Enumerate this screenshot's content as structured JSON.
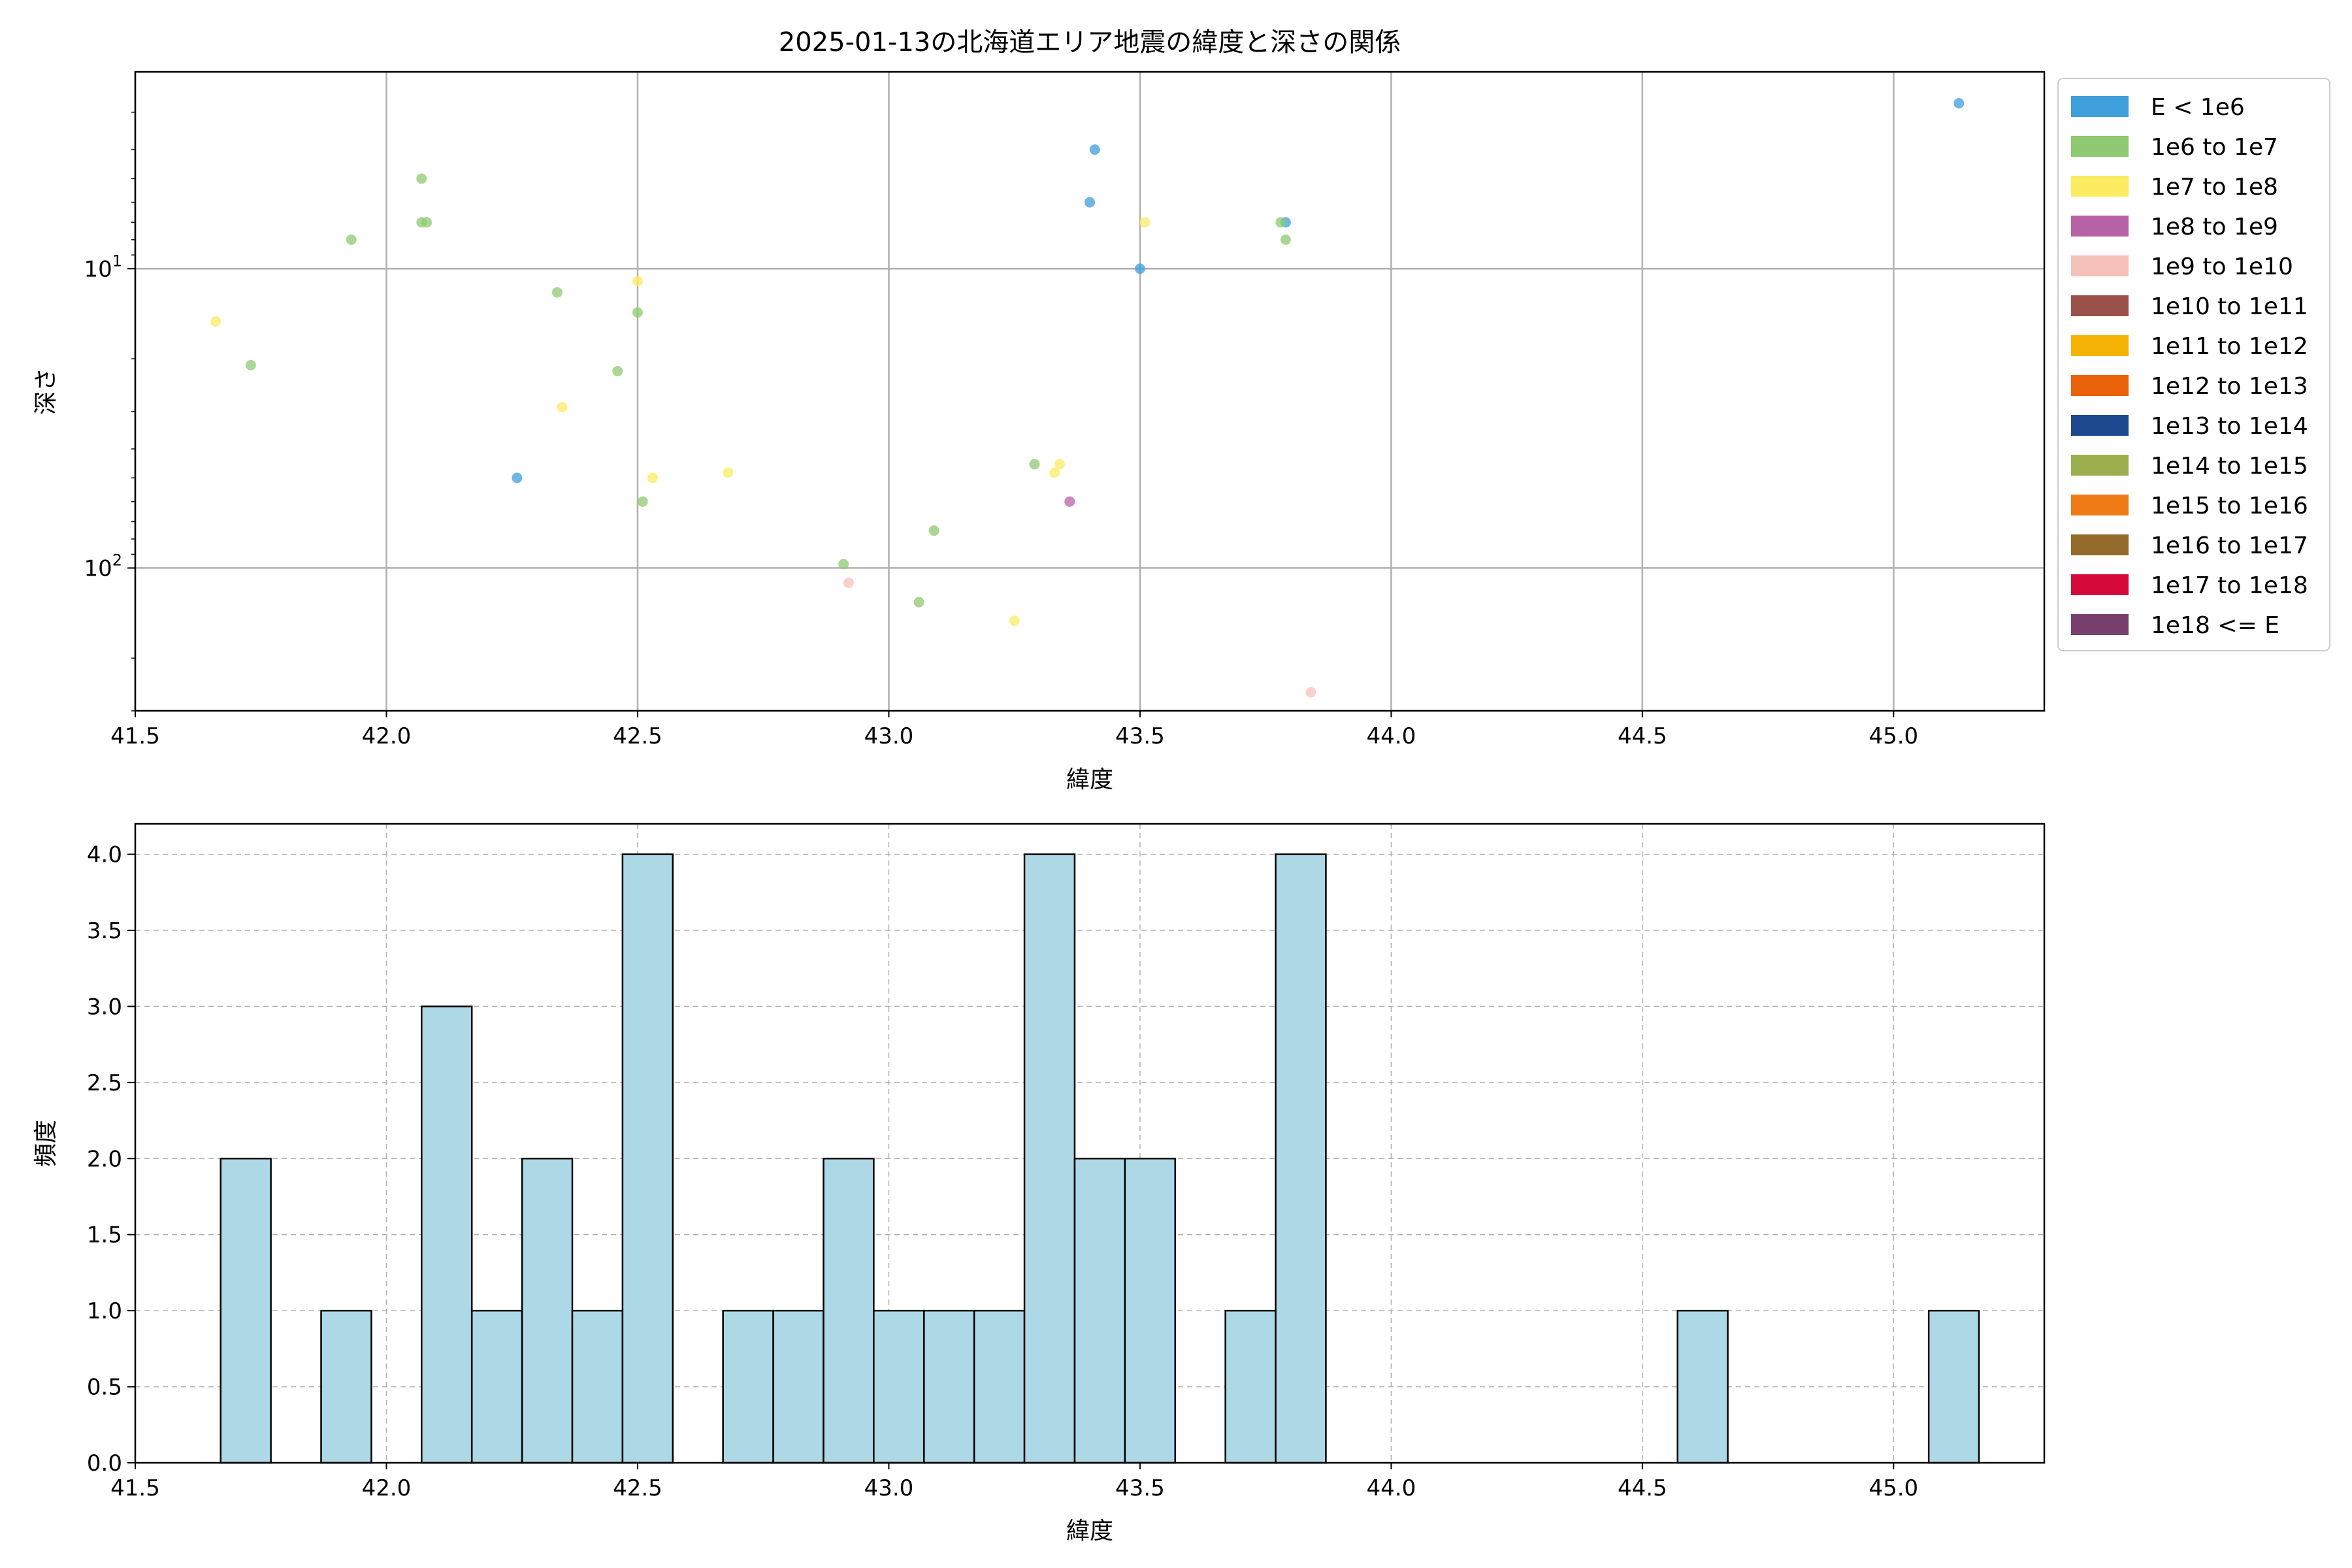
{
  "figure": {
    "title": "2025-01-13の北海道エリア地震の緯度と深さの関係"
  },
  "chart_data": [
    {
      "type": "scatter",
      "title": "2025-01-13の北海道エリア地震の緯度と深さの関係",
      "xlabel": "緯度",
      "ylabel": "深さ",
      "xlim": [
        41.5,
        45.3
      ],
      "ylim": [
        300,
        2.2
      ],
      "y_scale": "log",
      "y_inverted": true,
      "grid": true,
      "legend_position": "outside-right",
      "x_ticks": [
        "41.5",
        "42.0",
        "42.5",
        "43.0",
        "43.5",
        "44.0",
        "44.5",
        "45.0"
      ],
      "y_ticks": [
        {
          "value": 10,
          "base": "10",
          "exp": "1"
        },
        {
          "value": 100,
          "base": "10",
          "exp": "2"
        }
      ],
      "legend": [
        {
          "label": "E < 1e6",
          "color": "#3e9fdb"
        },
        {
          "label": "1e6 to 1e7",
          "color": "#8fc971"
        },
        {
          "label": "1e7 to 1e8",
          "color": "#fbec62"
        },
        {
          "label": "1e8 to 1e9",
          "color": "#b762a5"
        },
        {
          "label": "1e9 to 1e10",
          "color": "#f5c1ba"
        },
        {
          "label": "1e10 to 1e11",
          "color": "#9a5149"
        },
        {
          "label": "1e11 to 1e12",
          "color": "#f5b306"
        },
        {
          "label": "1e12 to 1e13",
          "color": "#ea6209"
        },
        {
          "label": "1e13 to 1e14",
          "color": "#1f498f"
        },
        {
          "label": "1e14 to 1e15",
          "color": "#9caf4e"
        },
        {
          "label": "1e15 to 1e16",
          "color": "#ee7b16"
        },
        {
          "label": "1e16 to 1e17",
          "color": "#946a2b"
        },
        {
          "label": "1e17 to 1e18",
          "color": "#d50a3b"
        },
        {
          "label": "1e18 <= E",
          "color": "#79406e"
        }
      ],
      "series": [
        {
          "name": "E < 1e6",
          "color": "#3e9fdb",
          "points": [
            [
              45.13,
              2.8
            ],
            [
              43.41,
              4.0
            ],
            [
              43.4,
              6.0
            ],
            [
              43.79,
              7.0
            ],
            [
              43.5,
              10.0
            ],
            [
              42.26,
              50.0
            ]
          ]
        },
        {
          "name": "1e6 to 1e7",
          "color": "#8fc971",
          "points": [
            [
              42.07,
              5.0
            ],
            [
              42.07,
              7.0
            ],
            [
              42.08,
              7.0
            ],
            [
              41.93,
              8.0
            ],
            [
              43.78,
              7.0
            ],
            [
              43.79,
              8.0
            ],
            [
              42.34,
              12.0
            ],
            [
              42.5,
              14.0
            ],
            [
              42.46,
              22.0
            ],
            [
              41.73,
              21.0
            ],
            [
              43.29,
              45.0
            ],
            [
              42.51,
              60.0
            ],
            [
              43.09,
              75.0
            ],
            [
              42.91,
              97.0
            ],
            [
              43.06,
              130.0
            ]
          ]
        },
        {
          "name": "1e7 to 1e8",
          "color": "#fbec62",
          "points": [
            [
              43.51,
              7.0
            ],
            [
              42.5,
              11.0
            ],
            [
              41.66,
              15.0
            ],
            [
              42.35,
              29.0
            ],
            [
              43.34,
              45.0
            ],
            [
              43.33,
              48.0
            ],
            [
              42.68,
              48.0
            ],
            [
              42.53,
              50.0
            ],
            [
              43.25,
              150.0
            ]
          ]
        },
        {
          "name": "1e8 to 1e9",
          "color": "#b762a5",
          "points": [
            [
              43.36,
              60.0
            ]
          ]
        },
        {
          "name": "1e9 to 1e10",
          "color": "#f5c1ba",
          "points": [
            [
              42.92,
              112.0
            ],
            [
              43.84,
              260.0
            ]
          ]
        }
      ]
    },
    {
      "type": "bar",
      "subtype": "histogram",
      "xlabel": "緯度",
      "ylabel": "頻度",
      "xlim": [
        41.5,
        45.3
      ],
      "ylim": [
        0,
        4.2
      ],
      "bin_width": 0.1,
      "grid": true,
      "bar_color": "#add8e6",
      "x_ticks": [
        "41.5",
        "42.0",
        "42.5",
        "43.0",
        "43.5",
        "44.0",
        "44.5",
        "45.0"
      ],
      "y_ticks": [
        "0.0",
        "0.5",
        "1.0",
        "1.5",
        "2.0",
        "2.5",
        "3.0",
        "3.5",
        "4.0"
      ],
      "bins": [
        {
          "x0": 41.67,
          "count": 2
        },
        {
          "x0": 41.87,
          "count": 1
        },
        {
          "x0": 42.07,
          "count": 3
        },
        {
          "x0": 42.17,
          "count": 1
        },
        {
          "x0": 42.27,
          "count": 2
        },
        {
          "x0": 42.37,
          "count": 1
        },
        {
          "x0": 42.47,
          "count": 4
        },
        {
          "x0": 42.67,
          "count": 1
        },
        {
          "x0": 42.77,
          "count": 1
        },
        {
          "x0": 42.87,
          "count": 2
        },
        {
          "x0": 42.97,
          "count": 1
        },
        {
          "x0": 43.07,
          "count": 1
        },
        {
          "x0": 43.17,
          "count": 1
        },
        {
          "x0": 43.27,
          "count": 4
        },
        {
          "x0": 43.37,
          "count": 2
        },
        {
          "x0": 43.47,
          "count": 2
        },
        {
          "x0": 43.67,
          "count": 1
        },
        {
          "x0": 43.77,
          "count": 4
        },
        {
          "x0": 44.57,
          "count": 1
        },
        {
          "x0": 45.07,
          "count": 1
        }
      ]
    }
  ]
}
